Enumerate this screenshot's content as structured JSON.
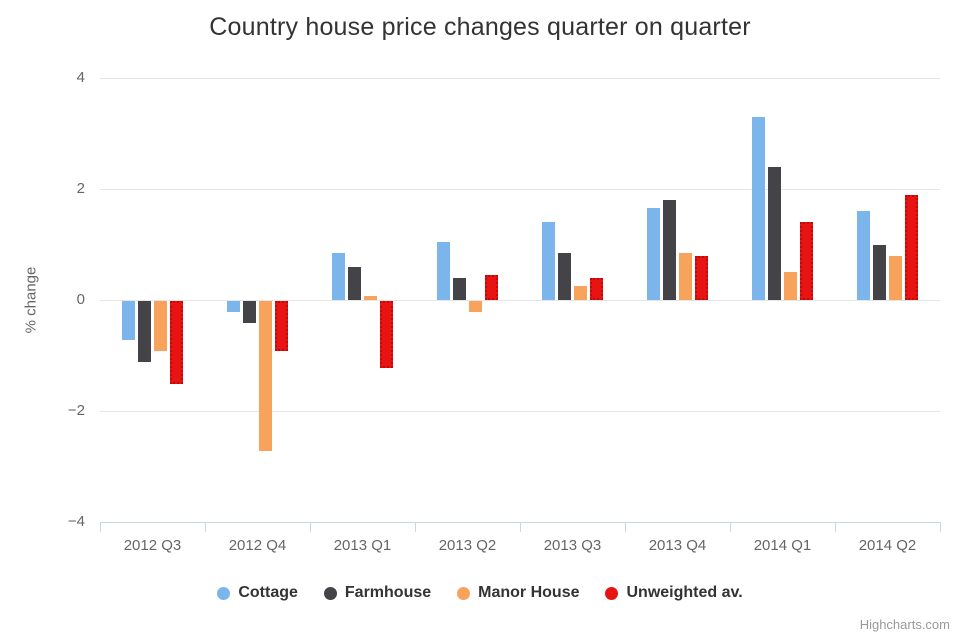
{
  "title": "Country house price changes quarter on quarter",
  "credit": "Highcharts.com",
  "chart_data": {
    "type": "bar",
    "title": "Country house price changes quarter on quarter",
    "xlabel": "",
    "ylabel": "% change",
    "ylim": [
      -4,
      4
    ],
    "yticks": [
      4,
      2,
      0,
      -2,
      -4
    ],
    "grid": true,
    "legend_position": "bottom",
    "categories": [
      "2012 Q3",
      "2012 Q4",
      "2013 Q1",
      "2013 Q2",
      "2013 Q3",
      "2013 Q4",
      "2014 Q1",
      "2014 Q2"
    ],
    "series": [
      {
        "name": "Cottage",
        "color": "#7cb5ec",
        "values": [
          -0.7,
          -0.2,
          0.85,
          1.05,
          1.4,
          1.65,
          3.3,
          1.6
        ]
      },
      {
        "name": "Farmhouse",
        "color": "#434348",
        "values": [
          -1.1,
          -0.4,
          0.6,
          0.4,
          0.85,
          1.8,
          2.4,
          1.0
        ]
      },
      {
        "name": "Manor House",
        "color": "#f7a35c",
        "values": [
          -0.9,
          -2.7,
          0.07,
          -0.2,
          0.25,
          0.85,
          0.5,
          0.8
        ]
      },
      {
        "name": "Unweighted av.",
        "color": "#e81313",
        "border_style": "dotted",
        "border_color": "#bf0a0a",
        "values": [
          -1.5,
          -0.9,
          -1.2,
          0.45,
          0.4,
          0.8,
          1.4,
          1.9
        ]
      }
    ]
  }
}
